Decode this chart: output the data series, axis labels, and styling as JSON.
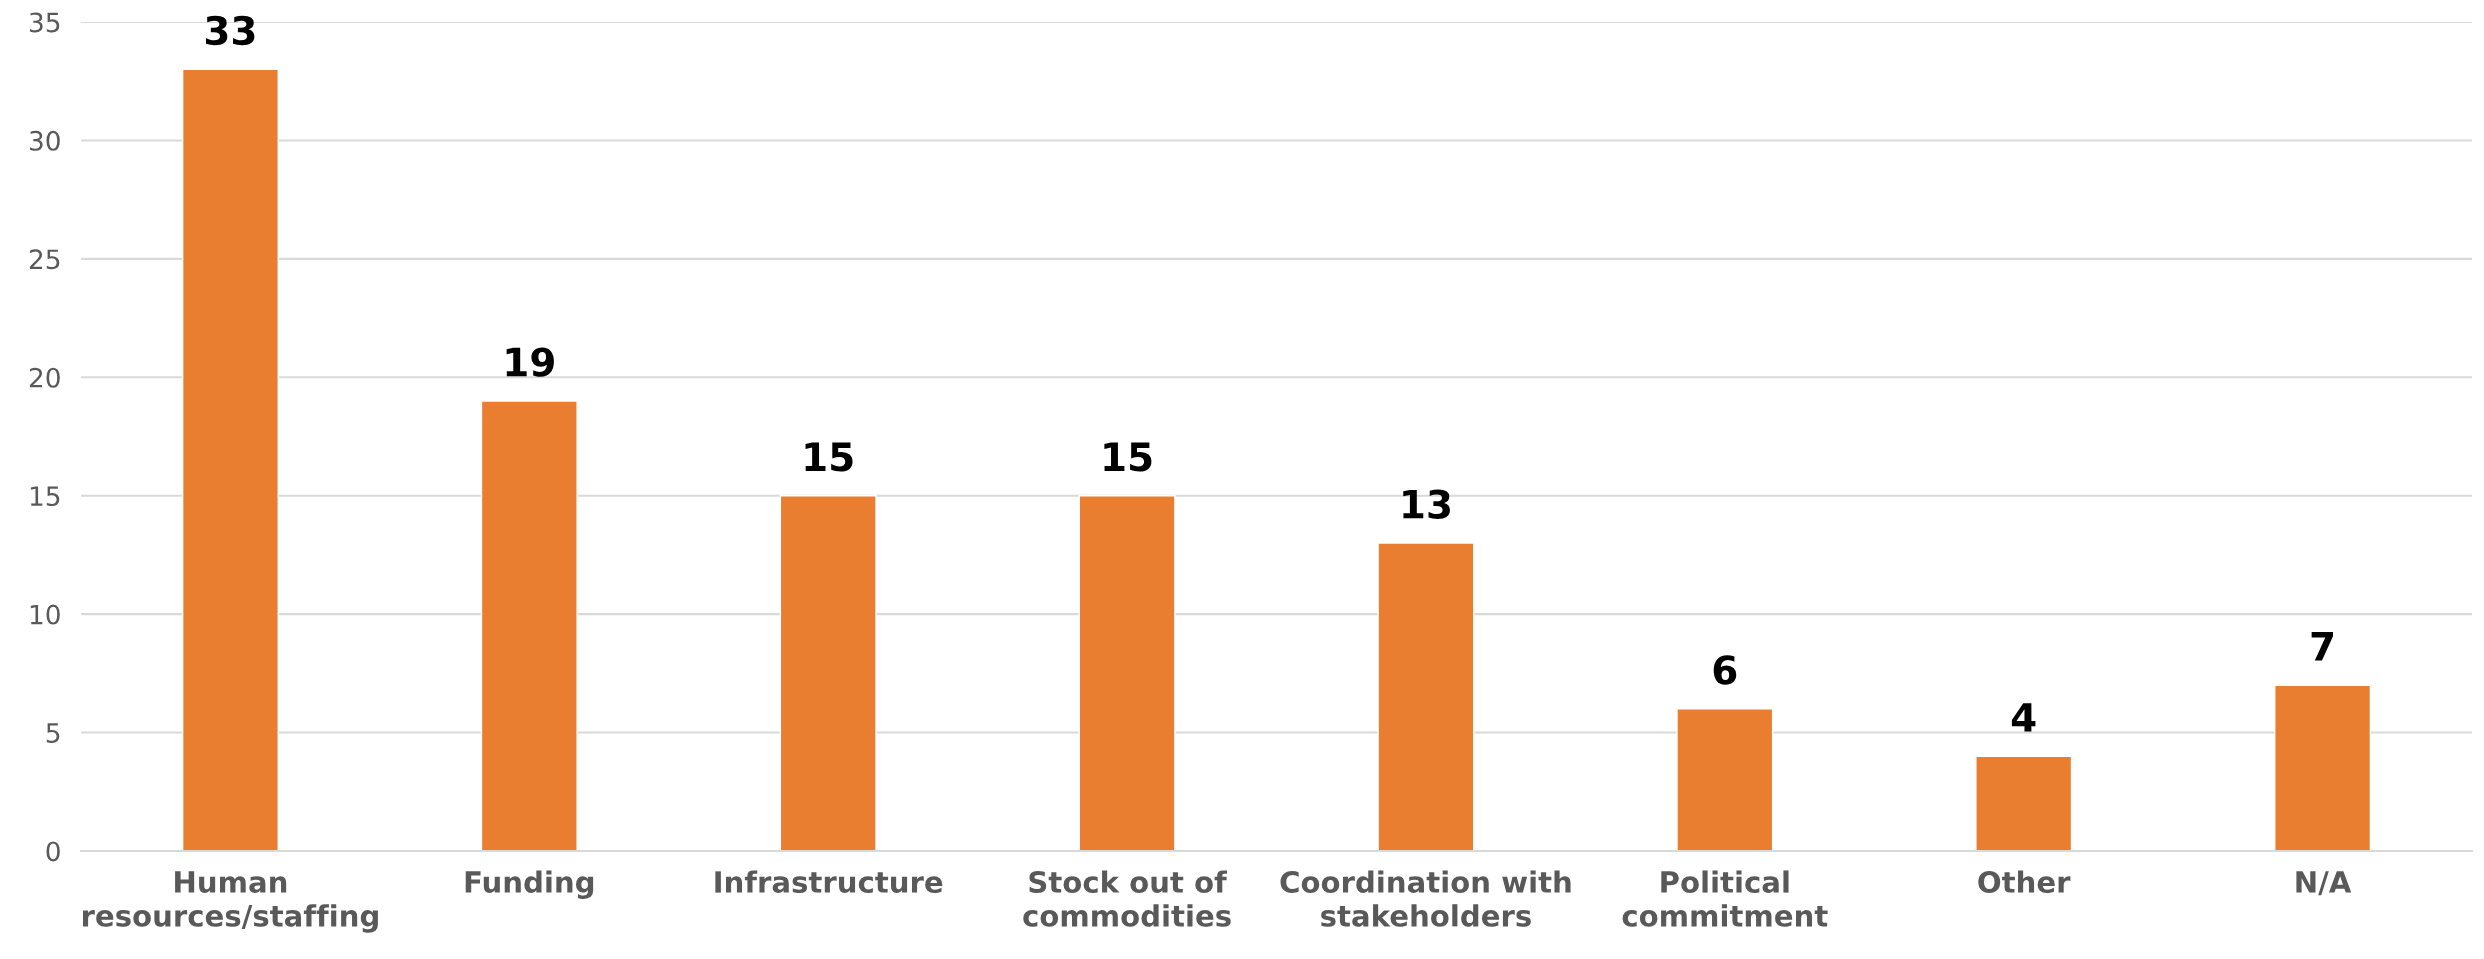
{
  "chart_data": {
    "type": "bar",
    "categories": [
      "Human\nresources/staffing",
      "Funding",
      "Infrastructure",
      "Stock out of\ncommodities",
      "Coordination with\nstakeholders",
      "Political\ncommitment",
      "Other",
      "N/A"
    ],
    "values": [
      33,
      19,
      15,
      15,
      13,
      6,
      4,
      7
    ],
    "color": "#e97e30",
    "ylim": [
      0,
      35
    ],
    "yticks": [
      0,
      5,
      10,
      15,
      20,
      25,
      30,
      35
    ],
    "grid": "y",
    "data_labels": true
  }
}
